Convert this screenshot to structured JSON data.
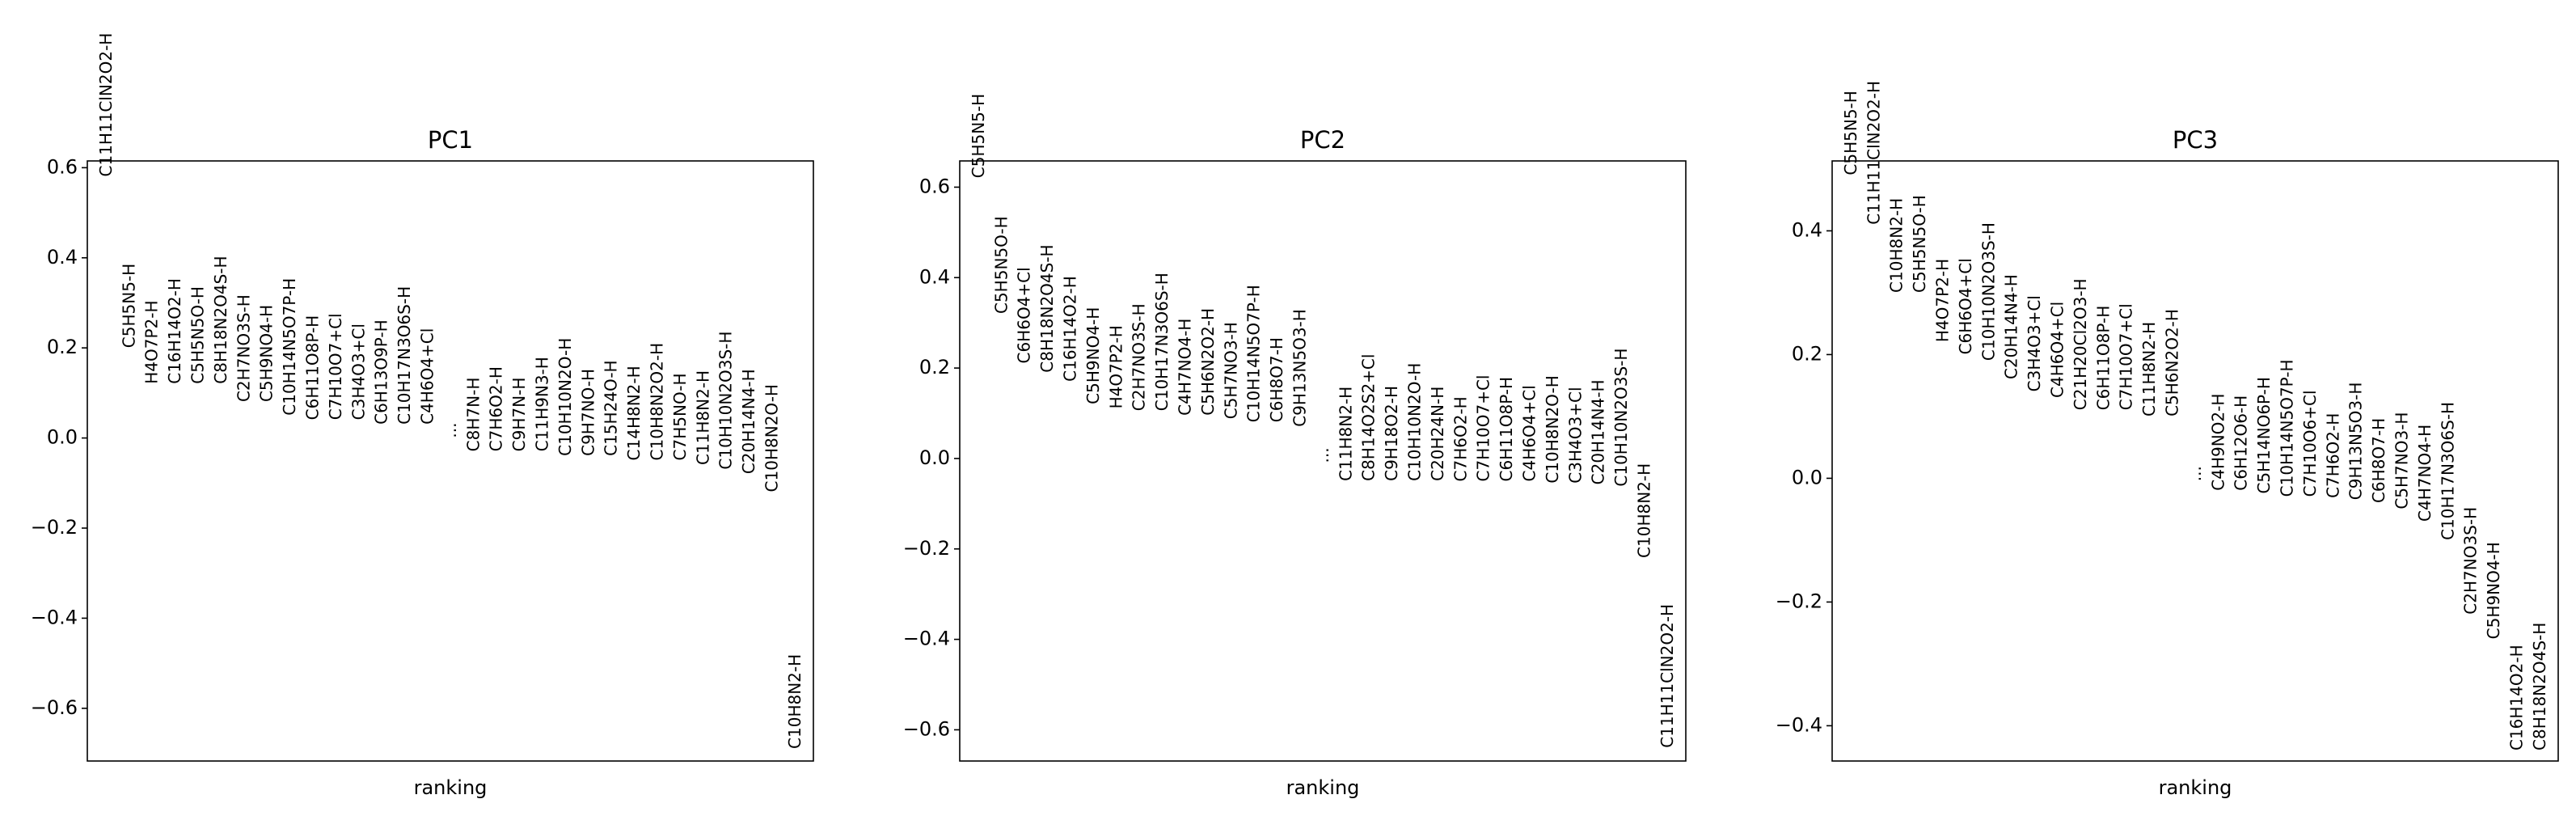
{
  "chart_data": [
    {
      "type": "ranking",
      "title": "PC1",
      "xlabel": "ranking",
      "ylim": [
        -0.717,
        0.615
      ],
      "yticks": [
        {
          "value": -0.6,
          "label": "−0.6"
        },
        {
          "value": -0.4,
          "label": "−0.4"
        },
        {
          "value": -0.2,
          "label": "−0.2"
        },
        {
          "value": 0,
          "label": "0.0"
        },
        0.2,
        0.4,
        0.6
      ],
      "categories": [
        "C11H11ClN2O2-H",
        "C5H5N5-H",
        "H4O7P2-H",
        "C16H14O2-H",
        "C5H5N5O-H",
        "C8H18N2O4S-H",
        "C2H7NO3S-H",
        "C5H9NO4-H",
        "C10H14N5O7P-H",
        "C6H11O8P-H",
        "C7H10O7+Cl",
        "C3H4O3+Cl",
        "C6H13O9P-H",
        "C10H17N3O6S-H",
        "C4H6O4+Cl",
        "...",
        "C8H7N-H",
        "C7H6O2-H",
        "C9H7N-H",
        "C11H9N3-H",
        "C10H10N2O-H",
        "C9H7NO-H",
        "C15H24O-H",
        "C14H8N2-H",
        "C10H8N2O2-H",
        "C7H5NO-H",
        "C11H8N2-H",
        "C10H10N2O3S-H",
        "C20H14N4-H",
        "C10H8N2O-H",
        "C10H8N2-H"
      ],
      "values": [
        0.58,
        0.2,
        0.12,
        0.12,
        0.12,
        0.12,
        0.08,
        0.08,
        0.05,
        0.04,
        0.04,
        0.04,
        0.03,
        0.03,
        0.03,
        0.0,
        -0.03,
        -0.03,
        -0.03,
        -0.03,
        -0.04,
        -0.04,
        -0.04,
        -0.05,
        -0.05,
        -0.05,
        -0.06,
        -0.07,
        -0.08,
        -0.12,
        -0.69
      ]
    },
    {
      "type": "ranking",
      "title": "PC2",
      "xlabel": "ranking",
      "ylim": [
        -0.669,
        0.658
      ],
      "yticks": [
        {
          "value": -0.6,
          "label": "−0.6"
        },
        {
          "value": -0.4,
          "label": "−0.4"
        },
        {
          "value": -0.2,
          "label": "−0.2"
        },
        {
          "value": 0,
          "label": "0.0"
        },
        0.2,
        0.4,
        0.6
      ],
      "categories": [
        "C5H5N5-H",
        "C5H5N5O-H",
        "C6H6O4+Cl",
        "C8H18N2O4S-H",
        "C16H14O2-H",
        "C5H9NO4-H",
        "H4O7P2-H",
        "C2H7NO3S-H",
        "C10H17N3O6S-H",
        "C4H7NO4-H",
        "C5H6N2O2-H",
        "C5H7NO3-H",
        "C10H14N5O7P-H",
        "C6H8O7-H",
        "C9H13N5O3-H",
        "...",
        "C11H8N2-H",
        "C8H14O2S2+Cl",
        "C9H18O2-H",
        "C10H10N2O-H",
        "C20H24N-H",
        "C7H6O2-H",
        "C7H10O7+Cl",
        "C6H11O8P-H",
        "C4H6O4+Cl",
        "C10H8N2O-H",
        "C3H4O3+Cl",
        "C20H14N4-H",
        "C10H10N2O3S-H",
        "C10H8N2-H",
        "C11H11ClN2O2-H"
      ],
      "values": [
        0.62,
        0.32,
        0.21,
        0.19,
        0.17,
        0.12,
        0.11,
        0.105,
        0.105,
        0.095,
        0.095,
        0.087,
        0.08,
        0.08,
        0.07,
        -0.01,
        -0.05,
        -0.05,
        -0.05,
        -0.05,
        -0.05,
        -0.051,
        -0.051,
        -0.051,
        -0.051,
        -0.055,
        -0.055,
        -0.058,
        -0.062,
        -0.22,
        -0.64
      ]
    },
    {
      "type": "ranking",
      "title": "PC3",
      "xlabel": "ranking",
      "ylim": [
        -0.457,
        0.513
      ],
      "yticks": [
        {
          "value": -0.4,
          "label": "−0.4"
        },
        {
          "value": -0.2,
          "label": "−0.2"
        },
        {
          "value": 0,
          "label": "0.0"
        },
        0.2,
        0.4
      ],
      "categories": [
        "C5H5N5-H",
        "C11H11ClN2O2-H",
        "C10H8N2-H",
        "C5H5N5O-H",
        "H4O7P2-H",
        "C6H6O4+Cl",
        "C10H10N2O3S-H",
        "C20H14N4-H",
        "C3H4O3+Cl",
        "C4H6O4+Cl",
        "C21H20Cl2O3-H",
        "C6H11O8P-H",
        "C7H10O7+Cl",
        "C11H8N2-H",
        "C5H6N2O2-H",
        "...",
        "C4H9NO2-H",
        "C6H12O6-H",
        "C5H14NO6P-H",
        "C10H14N5O7P-H",
        "C7H10O6+Cl",
        "C7H6O2-H",
        "C9H13N5O3-H",
        "C6H8O7-H",
        "C5H7NO3-H",
        "C4H7NO4-H",
        "C10H17N3O6S-H",
        "C2H7NO3S-H",
        "C5H9NO4-H",
        "C16H14O2-H",
        "C8H18N2O4S-H"
      ],
      "values": [
        0.49,
        0.41,
        0.3,
        0.3,
        0.22,
        0.2,
        0.19,
        0.16,
        0.14,
        0.13,
        0.11,
        0.11,
        0.11,
        0.1,
        0.1,
        -0.005,
        -0.02,
        -0.02,
        -0.025,
        -0.03,
        -0.03,
        -0.032,
        -0.035,
        -0.04,
        -0.05,
        -0.07,
        -0.1,
        -0.22,
        -0.26,
        -0.44,
        -0.44
      ]
    }
  ]
}
